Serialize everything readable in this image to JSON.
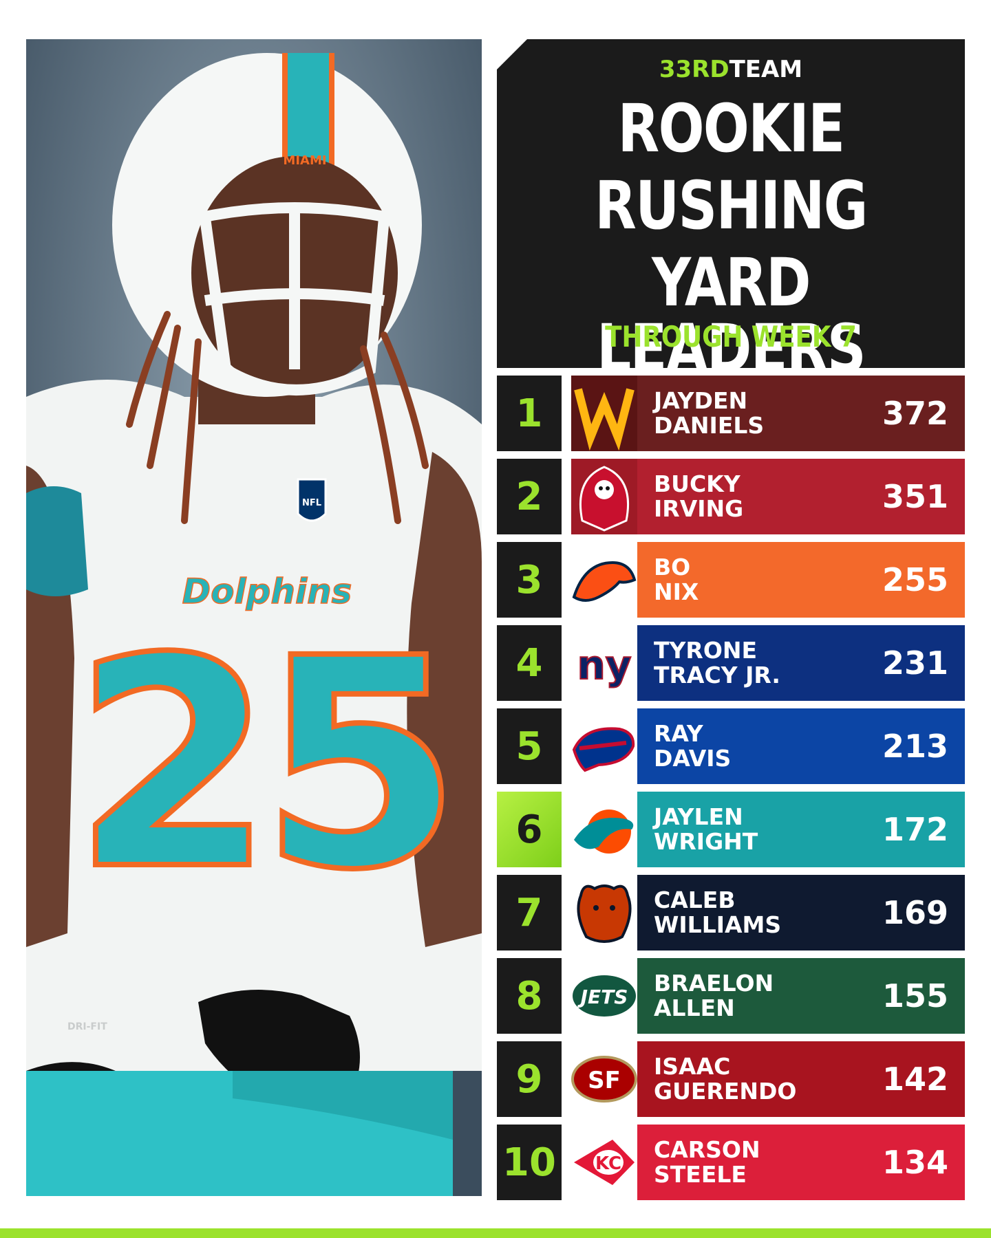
{
  "brand": {
    "number": "33RD",
    "word": "TEAM"
  },
  "title": {
    "line1": "ROOKIE",
    "line2": "RUSHING",
    "line3": "YARD LEADERS"
  },
  "subtitle": "THROUGH WEEK 7",
  "photo": {
    "helmet_text": "MIAMI",
    "jersey_text": "Dolphins",
    "jersey_number": "25",
    "badge_text": "NFL",
    "sleeve_text": "DRI-FIT"
  },
  "colors": {
    "accent": "#9be22d",
    "panel": "#1b1b1b"
  },
  "leaders": [
    {
      "rank": "1",
      "first": "JAYDEN",
      "last": "DANIELS",
      "yards": "372",
      "team_logo": "commanders-logo",
      "color": "#6a1f1f"
    },
    {
      "rank": "2",
      "first": "BUCKY",
      "last": "IRVING",
      "yards": "351",
      "team_logo": "buccaneers-logo",
      "color": "#b2202f"
    },
    {
      "rank": "3",
      "first": "BO",
      "last": "NIX",
      "yards": "255",
      "team_logo": "broncos-logo",
      "color": "#f3692b"
    },
    {
      "rank": "4",
      "first": "TYRONE",
      "last": "TRACY JR.",
      "yards": "231",
      "team_logo": "giants-logo",
      "color": "#0d3080"
    },
    {
      "rank": "5",
      "first": "RAY",
      "last": "DAVIS",
      "yards": "213",
      "team_logo": "bills-logo",
      "color": "#0c45a5"
    },
    {
      "rank": "6",
      "first": "JAYLEN",
      "last": "WRIGHT",
      "yards": "172",
      "team_logo": "dolphins-logo",
      "color": "#19a2a6"
    },
    {
      "rank": "7",
      "first": "CALEB",
      "last": "WILLIAMS",
      "yards": "169",
      "team_logo": "bears-logo",
      "color": "#0f1a30"
    },
    {
      "rank": "8",
      "first": "BRAELON",
      "last": "ALLEN",
      "yards": "155",
      "team_logo": "jets-logo",
      "color": "#1d5a3c"
    },
    {
      "rank": "9",
      "first": "ISAAC",
      "last": "GUERENDO",
      "yards": "142",
      "team_logo": "49ers-logo",
      "color": "#a8141f"
    },
    {
      "rank": "10",
      "first": "CARSON",
      "last": "STEELE",
      "yards": "134",
      "team_logo": "chiefs-logo",
      "color": "#dc1f3a"
    }
  ],
  "highlight_rank": "6"
}
